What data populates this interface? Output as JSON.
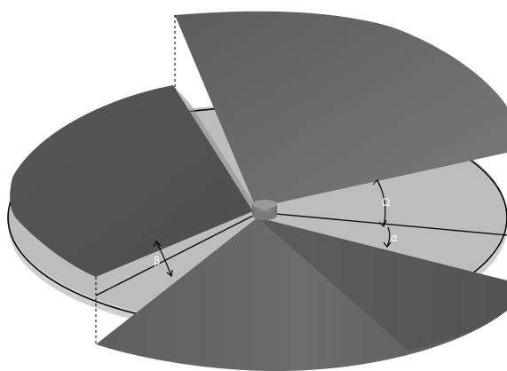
{
  "labels": {
    "omega": "Ω",
    "alpha": "α",
    "beta": "β"
  },
  "colors": {
    "disk_top": "#bcbcbc",
    "disk_side": "#d0d0d0",
    "outline": "#000000",
    "blade_dark": "#5a5a5a",
    "blade_mid": "#707070",
    "blade_light": "#7e7e7e",
    "hub": "#808080",
    "background": "#ffffff"
  }
}
